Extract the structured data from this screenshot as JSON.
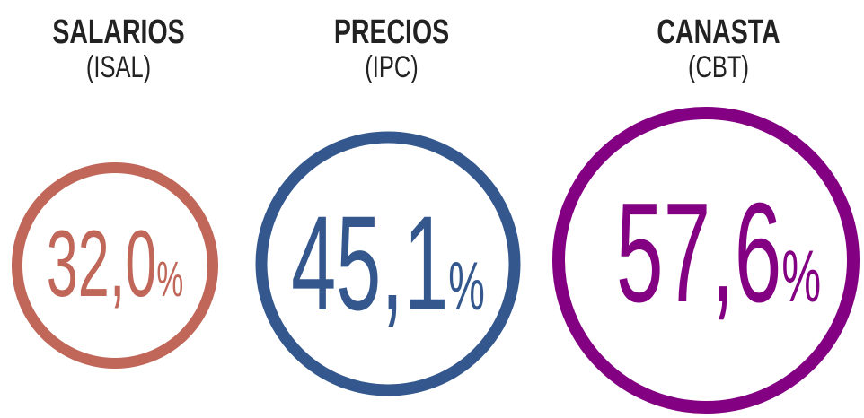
{
  "items": [
    {
      "title": "SALARIOS",
      "subtitle": "(ISAL)",
      "value": "32,0",
      "unit": "%",
      "color": "#c0675a"
    },
    {
      "title": "PRECIOS",
      "subtitle": "(IPC)",
      "value": "45,1",
      "unit": "%",
      "color": "#34588e"
    },
    {
      "title": "CANASTA",
      "subtitle": "(CBT)",
      "value": "57,6",
      "unit": "%",
      "color": "#820081"
    }
  ]
}
